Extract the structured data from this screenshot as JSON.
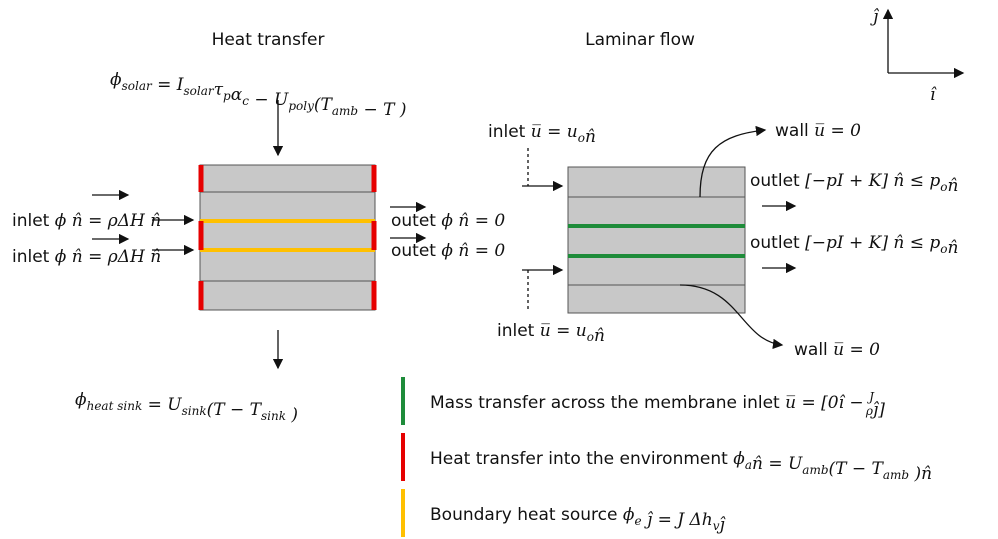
{
  "headings": {
    "heat_transfer": "Heat transfer",
    "laminar_flow": "Laminar flow"
  },
  "axes": {
    "j": "ĵ",
    "i": "î"
  },
  "equations": {
    "solar": [
      {
        "text": "ϕ",
        "sub": "solar"
      },
      {
        "text": " = I",
        "sub": "solar"
      },
      {
        "text": "τ",
        "sub": "p"
      },
      {
        "text": "α",
        "sub": "c"
      },
      {
        "text": " − U",
        "sub": "poly"
      },
      {
        "text": "(T",
        "sub": "amb"
      },
      {
        "text": " − T )"
      }
    ],
    "heat_sink": [
      {
        "text": "ϕ",
        "sub": "heat sink"
      },
      {
        "text": " = U",
        "sub": "sink"
      },
      {
        "text": "(T − T",
        "sub": "sink"
      },
      {
        "text": " )"
      }
    ]
  },
  "heat_transfer_boundaries": {
    "inlets": [
      {
        "label": "inlet",
        "equation": [
          {
            "text": " ϕ n̂ = ρΔH n̂"
          }
        ]
      },
      {
        "label": "inlet",
        "equation": [
          {
            "text": " ϕ n̂ = ρΔH n̂"
          }
        ]
      }
    ],
    "outlets": [
      {
        "label": "outet",
        "equation": [
          {
            "text": " ϕ n̂ = 0"
          }
        ]
      },
      {
        "label": "outet",
        "equation": [
          {
            "text": " ϕ n̂ = 0"
          }
        ]
      }
    ]
  },
  "laminar_flow_boundaries": {
    "inlet_top": {
      "label": "inlet",
      "equation": [
        {
          "text": " u̅ = u",
          "sub": "o"
        },
        {
          "text": "n̂"
        }
      ]
    },
    "inlet_bottom": {
      "label": "inlet",
      "equation": [
        {
          "text": " u̅ = u",
          "sub": "o"
        },
        {
          "text": "n̂"
        }
      ]
    },
    "wall_top": {
      "label": "wall",
      "equation": [
        {
          "text": " u̅ = 0"
        }
      ]
    },
    "wall_bottom": {
      "label": "wall",
      "equation": [
        {
          "text": " u̅ = 0"
        }
      ]
    },
    "outlets": [
      {
        "label": "outlet",
        "equation": [
          {
            "text": " [−pI + K] n̂ ≤ p",
            "sub": "o"
          },
          {
            "text": "n̂"
          }
        ]
      },
      {
        "label": "outlet",
        "equation": [
          {
            "text": " [−pI + K] n̂ ≤ p",
            "sub": "o"
          },
          {
            "text": "n̂"
          }
        ]
      }
    ]
  },
  "legend": [
    {
      "color": "#1e8c3a",
      "label": "Mass transfer across the membrane inlet",
      "equation": [
        {
          "text": " u̅ = [0î − "
        },
        {
          "num": "J",
          "den": "ρ"
        },
        {
          "text": "ĵ]"
        }
      ]
    },
    {
      "color": "#e60000",
      "label": "Heat transfer into the environment",
      "equation": [
        {
          "text": " ϕ",
          "sub": "a"
        },
        {
          "text": "n̂ = U",
          "sub": "amb"
        },
        {
          "text": "(T − T",
          "sub": "amb"
        },
        {
          "text": " )n̂"
        }
      ]
    },
    {
      "color": "#ffc000",
      "label": "Boundary heat source",
      "equation": [
        {
          "text": " ϕ",
          "sub": "e"
        },
        {
          "text": " ĵ = J Δh",
          "sub": "v"
        },
        {
          "text": "ĵ"
        }
      ]
    }
  ]
}
